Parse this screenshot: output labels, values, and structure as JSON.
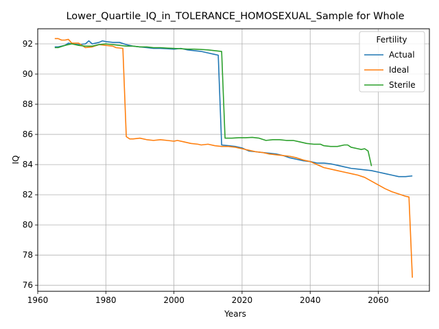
{
  "chart_data": {
    "type": "line",
    "title": "Lower_Quartile_IQ_in_TOLERANCE_HOMOSEXUAL_Sample for Whole",
    "xlabel": "Years",
    "ylabel": "IQ",
    "xlim": [
      1960,
      2075
    ],
    "ylim": [
      75.6,
      93.0
    ],
    "xticks": [
      1960,
      1980,
      2000,
      2020,
      2040,
      2060
    ],
    "yticks": [
      76,
      78,
      80,
      82,
      84,
      86,
      88,
      90,
      92
    ],
    "grid": true,
    "legend": {
      "title": "Fertility",
      "position": "top-right"
    },
    "series": [
      {
        "name": "Actual",
        "color": "#1f77b4",
        "points": [
          [
            1965,
            91.8
          ],
          [
            1966,
            91.8
          ],
          [
            1967,
            91.85
          ],
          [
            1968,
            91.9
          ],
          [
            1969,
            92.05
          ],
          [
            1970,
            92.0
          ],
          [
            1972,
            91.95
          ],
          [
            1974,
            92.0
          ],
          [
            1975,
            92.2
          ],
          [
            1976,
            92.0
          ],
          [
            1978,
            92.1
          ],
          [
            1979,
            92.2
          ],
          [
            1980,
            92.15
          ],
          [
            1982,
            92.1
          ],
          [
            1984,
            92.1
          ],
          [
            1986,
            91.95
          ],
          [
            1988,
            91.85
          ],
          [
            1990,
            91.8
          ],
          [
            1992,
            91.75
          ],
          [
            1994,
            91.7
          ],
          [
            1996,
            91.7
          ],
          [
            1998,
            91.68
          ],
          [
            2000,
            91.65
          ],
          [
            2002,
            91.7
          ],
          [
            2004,
            91.6
          ],
          [
            2006,
            91.55
          ],
          [
            2008,
            91.5
          ],
          [
            2010,
            91.4
          ],
          [
            2012,
            91.3
          ],
          [
            2013,
            91.25
          ],
          [
            2014,
            85.3
          ],
          [
            2016,
            85.25
          ],
          [
            2018,
            85.2
          ],
          [
            2020,
            85.1
          ],
          [
            2021,
            85.0
          ],
          [
            2022,
            84.9
          ],
          [
            2024,
            84.85
          ],
          [
            2026,
            84.8
          ],
          [
            2028,
            84.75
          ],
          [
            2030,
            84.7
          ],
          [
            2032,
            84.6
          ],
          [
            2034,
            84.45
          ],
          [
            2036,
            84.35
          ],
          [
            2038,
            84.25
          ],
          [
            2040,
            84.2
          ],
          [
            2042,
            84.1
          ],
          [
            2044,
            84.1
          ],
          [
            2046,
            84.05
          ],
          [
            2048,
            83.95
          ],
          [
            2050,
            83.85
          ],
          [
            2052,
            83.75
          ],
          [
            2054,
            83.7
          ],
          [
            2056,
            83.65
          ],
          [
            2058,
            83.6
          ],
          [
            2060,
            83.5
          ],
          [
            2062,
            83.4
          ],
          [
            2064,
            83.3
          ],
          [
            2066,
            83.2
          ],
          [
            2068,
            83.2
          ],
          [
            2070,
            83.25
          ]
        ]
      },
      {
        "name": "Ideal",
        "color": "#ff7f0e",
        "points": [
          [
            1965,
            92.35
          ],
          [
            1966,
            92.35
          ],
          [
            1967,
            92.25
          ],
          [
            1968,
            92.25
          ],
          [
            1969,
            92.3
          ],
          [
            1970,
            92.05
          ],
          [
            1972,
            92.05
          ],
          [
            1974,
            91.75
          ],
          [
            1976,
            91.8
          ],
          [
            1978,
            91.95
          ],
          [
            1980,
            91.9
          ],
          [
            1982,
            91.85
          ],
          [
            1983,
            91.75
          ],
          [
            1985,
            91.7
          ],
          [
            1986,
            85.85
          ],
          [
            1987,
            85.7
          ],
          [
            1988,
            85.7
          ],
          [
            1990,
            85.75
          ],
          [
            1992,
            85.65
          ],
          [
            1994,
            85.6
          ],
          [
            1996,
            85.65
          ],
          [
            1998,
            85.6
          ],
          [
            2000,
            85.55
          ],
          [
            2001,
            85.6
          ],
          [
            2003,
            85.5
          ],
          [
            2005,
            85.4
          ],
          [
            2007,
            85.35
          ],
          [
            2008,
            85.3
          ],
          [
            2010,
            85.35
          ],
          [
            2012,
            85.25
          ],
          [
            2014,
            85.2
          ],
          [
            2016,
            85.2
          ],
          [
            2018,
            85.15
          ],
          [
            2020,
            85.05
          ],
          [
            2022,
            84.95
          ],
          [
            2024,
            84.85
          ],
          [
            2026,
            84.8
          ],
          [
            2028,
            84.7
          ],
          [
            2030,
            84.65
          ],
          [
            2032,
            84.6
          ],
          [
            2034,
            84.55
          ],
          [
            2036,
            84.45
          ],
          [
            2038,
            84.3
          ],
          [
            2040,
            84.2
          ],
          [
            2042,
            84.0
          ],
          [
            2044,
            83.8
          ],
          [
            2046,
            83.7
          ],
          [
            2048,
            83.6
          ],
          [
            2050,
            83.5
          ],
          [
            2052,
            83.4
          ],
          [
            2054,
            83.3
          ],
          [
            2056,
            83.15
          ],
          [
            2058,
            82.9
          ],
          [
            2060,
            82.65
          ],
          [
            2062,
            82.4
          ],
          [
            2064,
            82.2
          ],
          [
            2066,
            82.05
          ],
          [
            2068,
            81.9
          ],
          [
            2069,
            81.85
          ],
          [
            2070,
            76.5
          ]
        ]
      },
      {
        "name": "Sterile",
        "color": "#2ca02c",
        "points": [
          [
            1965,
            91.75
          ],
          [
            1966,
            91.75
          ],
          [
            1968,
            91.9
          ],
          [
            1970,
            92.0
          ],
          [
            1972,
            91.9
          ],
          [
            1974,
            91.85
          ],
          [
            1976,
            91.85
          ],
          [
            1978,
            91.95
          ],
          [
            1980,
            92.0
          ],
          [
            1982,
            91.95
          ],
          [
            1984,
            91.9
          ],
          [
            1986,
            91.85
          ],
          [
            1988,
            91.85
          ],
          [
            1990,
            91.8
          ],
          [
            1992,
            91.8
          ],
          [
            1994,
            91.75
          ],
          [
            1996,
            91.75
          ],
          [
            1998,
            91.72
          ],
          [
            2000,
            91.7
          ],
          [
            2002,
            91.68
          ],
          [
            2004,
            91.65
          ],
          [
            2006,
            91.65
          ],
          [
            2008,
            91.63
          ],
          [
            2010,
            91.6
          ],
          [
            2012,
            91.55
          ],
          [
            2014,
            91.5
          ],
          [
            2015,
            85.75
          ],
          [
            2017,
            85.75
          ],
          [
            2019,
            85.78
          ],
          [
            2021,
            85.78
          ],
          [
            2023,
            85.8
          ],
          [
            2025,
            85.75
          ],
          [
            2027,
            85.6
          ],
          [
            2029,
            85.65
          ],
          [
            2031,
            85.65
          ],
          [
            2033,
            85.6
          ],
          [
            2035,
            85.6
          ],
          [
            2037,
            85.5
          ],
          [
            2039,
            85.4
          ],
          [
            2041,
            85.35
          ],
          [
            2043,
            85.35
          ],
          [
            2044,
            85.25
          ],
          [
            2046,
            85.2
          ],
          [
            2048,
            85.2
          ],
          [
            2050,
            85.3
          ],
          [
            2051,
            85.3
          ],
          [
            2052,
            85.15
          ],
          [
            2054,
            85.05
          ],
          [
            2055,
            85.0
          ],
          [
            2056,
            85.05
          ],
          [
            2057,
            84.9
          ],
          [
            2058,
            83.9
          ]
        ]
      }
    ]
  }
}
